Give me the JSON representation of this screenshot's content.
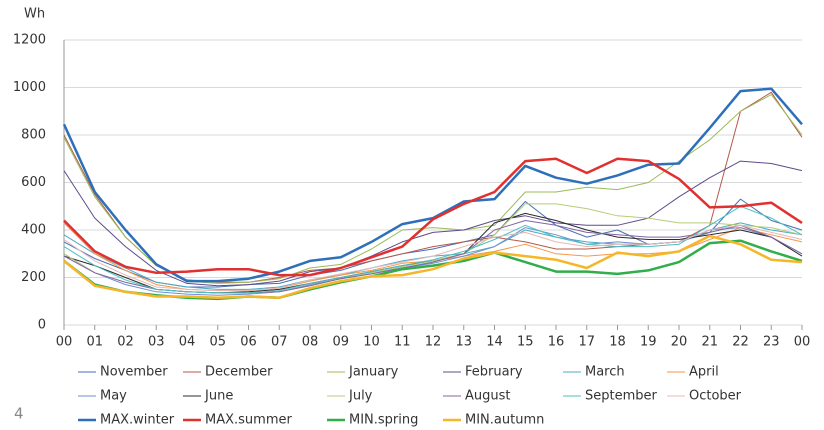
{
  "chart_data": {
    "type": "line",
    "y_label": "Wh",
    "categories": [
      "00",
      "01",
      "02",
      "03",
      "04",
      "05",
      "06",
      "07",
      "08",
      "09",
      "10",
      "11",
      "12",
      "13",
      "14",
      "15",
      "16",
      "17",
      "18",
      "19",
      "20",
      "21",
      "22",
      "23",
      "00"
    ],
    "ylim": [
      0,
      1200
    ],
    "yticks": [
      0,
      200,
      400,
      600,
      800,
      1000,
      1200
    ],
    "grid": true,
    "series": [
      {
        "name": "November",
        "color": "#4a6fb5",
        "width": 1,
        "values": [
          350,
          280,
          230,
          180,
          160,
          160,
          170,
          175,
          210,
          230,
          270,
          300,
          320,
          350,
          380,
          520,
          420,
          370,
          400,
          340,
          350,
          390,
          530,
          440,
          400
        ]
      },
      {
        "name": "December",
        "color": "#b5594a",
        "width": 1,
        "values": [
          800,
          550,
          370,
          250,
          190,
          180,
          180,
          200,
          230,
          240,
          270,
          300,
          330,
          350,
          370,
          350,
          320,
          320,
          330,
          340,
          350,
          420,
          900,
          980,
          790
        ]
      },
      {
        "name": "January",
        "color": "#9bbb59",
        "width": 1,
        "values": [
          790,
          540,
          370,
          250,
          185,
          175,
          180,
          195,
          240,
          255,
          320,
          400,
          410,
          400,
          420,
          560,
          560,
          580,
          570,
          600,
          690,
          780,
          900,
          970,
          800
        ]
      },
      {
        "name": "February",
        "color": "#5f4b8b",
        "width": 1,
        "values": [
          650,
          450,
          330,
          230,
          175,
          165,
          170,
          185,
          225,
          240,
          290,
          350,
          390,
          400,
          440,
          460,
          430,
          420,
          420,
          450,
          540,
          620,
          690,
          680,
          650
        ]
      },
      {
        "name": "March",
        "color": "#4bacc6",
        "width": 1,
        "values": [
          380,
          300,
          240,
          180,
          160,
          150,
          150,
          160,
          190,
          210,
          240,
          270,
          290,
          300,
          330,
          400,
          370,
          350,
          340,
          340,
          350,
          400,
          430,
          400,
          380
        ]
      },
      {
        "name": "April",
        "color": "#f79646",
        "width": 1,
        "values": [
          430,
          300,
          230,
          170,
          150,
          145,
          145,
          155,
          185,
          210,
          230,
          260,
          270,
          290,
          310,
          340,
          300,
          290,
          300,
          300,
          310,
          360,
          410,
          380,
          350
        ]
      },
      {
        "name": "May",
        "color": "#6f8fcf",
        "width": 1,
        "values": [
          300,
          220,
          170,
          140,
          130,
          125,
          130,
          140,
          170,
          195,
          220,
          240,
          260,
          290,
          330,
          410,
          380,
          340,
          350,
          340,
          350,
          400,
          410,
          370,
          300
        ]
      },
      {
        "name": "June",
        "color": "#2b2b2b",
        "width": 1,
        "values": [
          290,
          250,
          200,
          150,
          140,
          135,
          140,
          150,
          175,
          200,
          225,
          250,
          270,
          300,
          430,
          470,
          440,
          400,
          370,
          360,
          360,
          380,
          400,
          370,
          290
        ]
      },
      {
        "name": "July",
        "color": "#b5cc7a",
        "width": 1,
        "values": [
          300,
          220,
          180,
          150,
          140,
          135,
          135,
          140,
          165,
          195,
          220,
          245,
          270,
          300,
          380,
          510,
          510,
          490,
          460,
          450,
          430,
          430,
          420,
          410,
          380
        ]
      },
      {
        "name": "August",
        "color": "#8064a2",
        "width": 1,
        "values": [
          290,
          220,
          180,
          150,
          140,
          135,
          135,
          140,
          165,
          195,
          215,
          240,
          265,
          300,
          400,
          440,
          420,
          390,
          380,
          370,
          370,
          390,
          420,
          370,
          300
        ]
      },
      {
        "name": "September",
        "color": "#4bc0c0",
        "width": 1,
        "values": [
          330,
          250,
          190,
          150,
          140,
          135,
          135,
          145,
          175,
          200,
          225,
          250,
          275,
          310,
          360,
          420,
          370,
          340,
          330,
          330,
          340,
          420,
          500,
          450,
          380
        ]
      },
      {
        "name": "October",
        "color": "#e6b9b8",
        "width": 1,
        "values": [
          360,
          270,
          210,
          160,
          150,
          145,
          145,
          155,
          190,
          215,
          240,
          265,
          290,
          330,
          370,
          390,
          350,
          330,
          340,
          340,
          350,
          400,
          420,
          390,
          360
        ]
      },
      {
        "name": "MAX.winter",
        "color": "#2e6fba",
        "width": 2.5,
        "values": [
          845,
          560,
          400,
          255,
          185,
          185,
          195,
          225,
          270,
          285,
          350,
          425,
          450,
          520,
          530,
          670,
          620,
          595,
          630,
          675,
          680,
          830,
          985,
          995,
          845
        ]
      },
      {
        "name": "MAX.summer",
        "color": "#e03030",
        "width": 2.5,
        "values": [
          440,
          310,
          245,
          220,
          225,
          235,
          235,
          210,
          210,
          240,
          285,
          330,
          445,
          510,
          560,
          690,
          700,
          640,
          700,
          690,
          615,
          495,
          500,
          515,
          430
        ]
      },
      {
        "name": "MIN.spring",
        "color": "#2fae4a",
        "width": 2.5,
        "values": [
          270,
          170,
          140,
          125,
          115,
          110,
          120,
          115,
          150,
          180,
          205,
          235,
          250,
          270,
          305,
          265,
          225,
          225,
          215,
          230,
          265,
          345,
          355,
          310,
          270
        ]
      },
      {
        "name": "MIN.autumn",
        "color": "#f5b629",
        "width": 2.5,
        "values": [
          270,
          165,
          140,
          120,
          120,
          115,
          120,
          115,
          155,
          185,
          205,
          210,
          235,
          280,
          305,
          290,
          275,
          240,
          305,
          290,
          310,
          375,
          340,
          275,
          265
        ]
      }
    ]
  },
  "page_number": "4"
}
